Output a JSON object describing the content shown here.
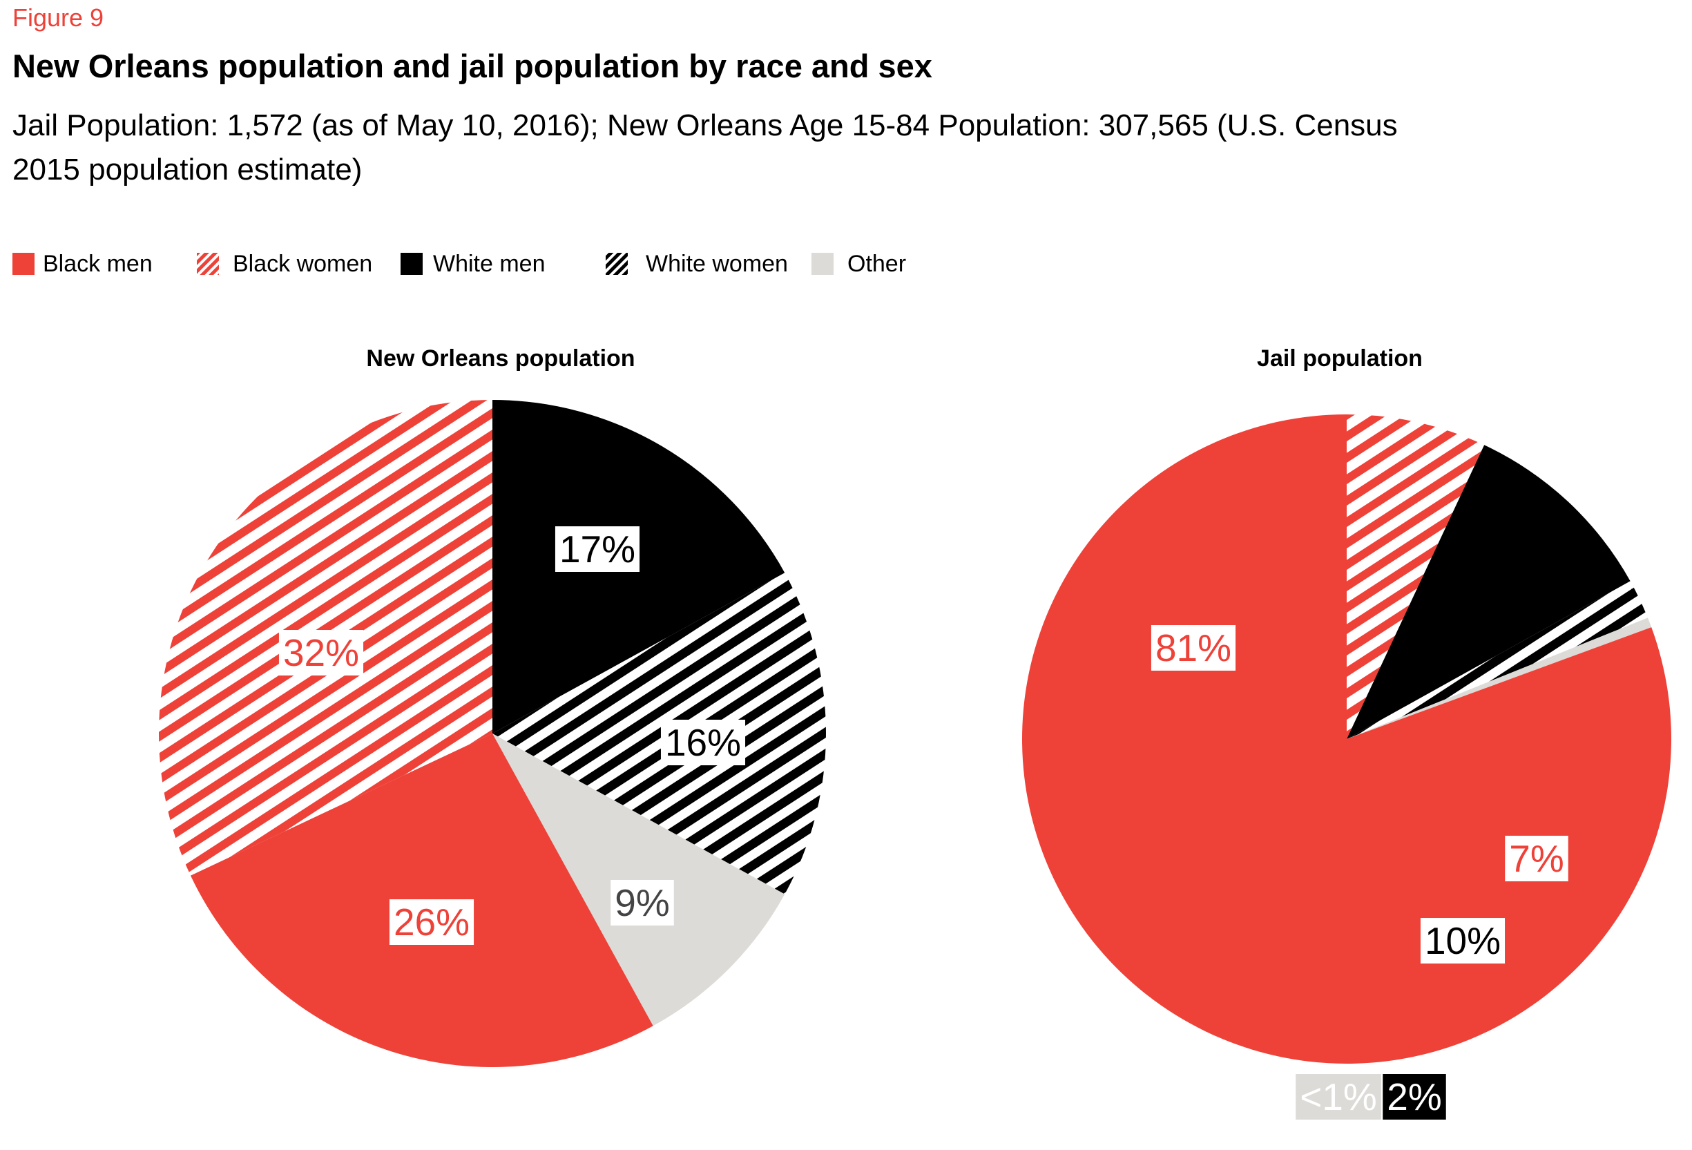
{
  "figure_label": "Figure 9",
  "title": "New Orleans population and jail population by race and sex",
  "subtitle_lines": [
    "Jail Population: 1,572 (as of May 10, 2016); New Orleans Age 15-84 Population: 307,565 (U.S. Census",
    "2015 population estimate)"
  ],
  "colors": {
    "accent_red": "#EE4138",
    "black": "#000000",
    "other_gray": "#DCDBD7",
    "label_text": "#444444",
    "white": "#FFFFFF"
  },
  "legend": [
    {
      "label": "Black men",
      "fill": "solid",
      "color": "#EE4138"
    },
    {
      "label": "Black women",
      "fill": "stripes",
      "color": "#EE4138"
    },
    {
      "label": "White men",
      "fill": "solid",
      "color": "#000000"
    },
    {
      "label": "White women",
      "fill": "stripes",
      "color": "#000000"
    },
    {
      "label": "Other",
      "fill": "solid",
      "color": "#DCDBD7"
    }
  ],
  "chart_data": [
    {
      "type": "pie",
      "title": "New Orleans population",
      "slices": [
        {
          "category": "White men",
          "value": 17,
          "label": "17%"
        },
        {
          "category": "White women",
          "value": 16,
          "label": "16%"
        },
        {
          "category": "Other",
          "value": 9,
          "label": "9%"
        },
        {
          "category": "Black men",
          "value": 26,
          "label": "26%"
        },
        {
          "category": "Black women",
          "value": 32,
          "label": "32%"
        }
      ]
    },
    {
      "type": "pie",
      "title": "Jail population",
      "slices": [
        {
          "category": "Black women",
          "value": 7,
          "label": "7%"
        },
        {
          "category": "White men",
          "value": 10,
          "label": "10%"
        },
        {
          "category": "White women",
          "value": 2,
          "label": "2%"
        },
        {
          "category": "Other",
          "value": 0.5,
          "label": "<1%"
        },
        {
          "category": "Black men",
          "value": 81,
          "label": "81%"
        }
      ]
    }
  ]
}
